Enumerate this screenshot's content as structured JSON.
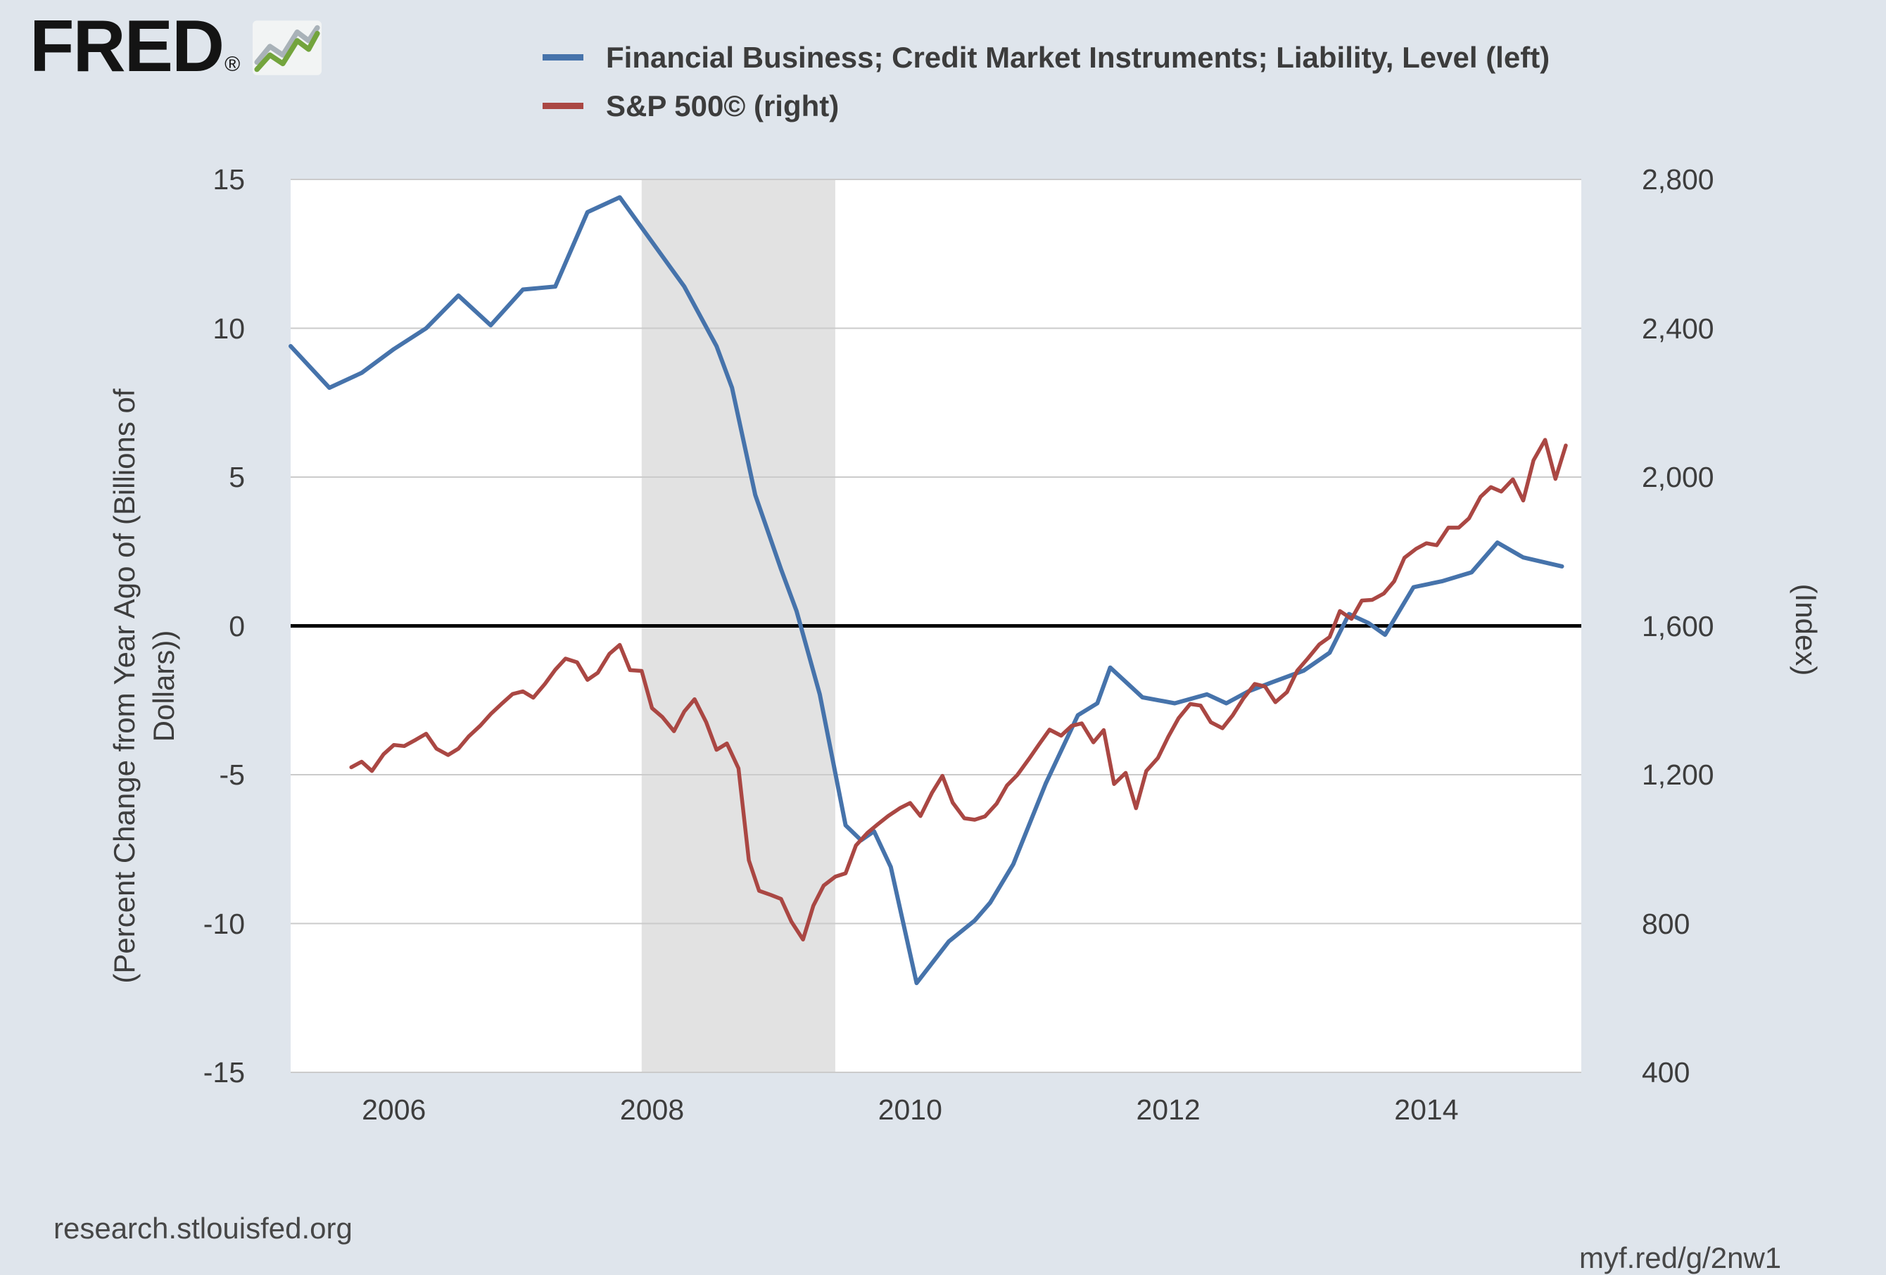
{
  "logo": {
    "text": "FRED",
    "registered": "®"
  },
  "footer": {
    "source": "research.stlouisfed.org",
    "shortlink": "myf.red/g/2nw1"
  },
  "chart_data": {
    "type": "line",
    "title": "",
    "x_domain": [
      2005.2,
      2015.2
    ],
    "x_ticks": [
      2006,
      2008,
      2010,
      2012,
      2014
    ],
    "recession_bands": [
      [
        2007.92,
        2009.42
      ]
    ],
    "zero_line": 0,
    "left_axis": {
      "label": "(Percent Change from Year Ago of (Billions of Dollars))",
      "label_lines": [
        "(Percent Change from Year Ago of (Billions of",
        "Dollars))"
      ],
      "range": [
        -15,
        15
      ],
      "ticks": [
        15,
        10,
        5,
        0,
        -5,
        -10,
        -15
      ]
    },
    "right_axis": {
      "label": "(Index)",
      "range": [
        400,
        2800
      ],
      "ticks": [
        2800,
        2400,
        2000,
        1600,
        1200,
        800,
        400
      ]
    },
    "colors": {
      "recession_band": "#e2e2e2",
      "gridline": "#cbcbcb",
      "zero_line": "#000000",
      "plot_background": "#ffffff",
      "page_background": "#dfe5ec"
    },
    "legend_position": "top",
    "grid": true,
    "series": [
      {
        "name": "Financial Business; Credit Market Instruments; Liability, Level (left)",
        "color": "#4673ab",
        "axis": "left",
        "width": 6,
        "points": [
          [
            2005.2,
            9.4
          ],
          [
            2005.5,
            8.0
          ],
          [
            2005.75,
            8.5
          ],
          [
            2006.0,
            9.3
          ],
          [
            2006.25,
            10.0
          ],
          [
            2006.5,
            11.1
          ],
          [
            2006.75,
            10.1
          ],
          [
            2007.0,
            11.3
          ],
          [
            2007.25,
            11.4
          ],
          [
            2007.5,
            13.9
          ],
          [
            2007.75,
            14.4
          ],
          [
            2008.0,
            12.9
          ],
          [
            2008.25,
            11.4
          ],
          [
            2008.5,
            9.4
          ],
          [
            2008.62,
            8.0
          ],
          [
            2008.8,
            4.4
          ],
          [
            2009.0,
            1.9
          ],
          [
            2009.12,
            0.5
          ],
          [
            2009.3,
            -2.3
          ],
          [
            2009.5,
            -6.7
          ],
          [
            2009.62,
            -7.2
          ],
          [
            2009.72,
            -6.9
          ],
          [
            2009.85,
            -8.1
          ],
          [
            2010.05,
            -12.0
          ],
          [
            2010.3,
            -10.6
          ],
          [
            2010.5,
            -9.9
          ],
          [
            2010.62,
            -9.3
          ],
          [
            2010.8,
            -8.0
          ],
          [
            2011.05,
            -5.3
          ],
          [
            2011.3,
            -3.0
          ],
          [
            2011.45,
            -2.6
          ],
          [
            2011.55,
            -1.4
          ],
          [
            2011.8,
            -2.4
          ],
          [
            2012.05,
            -2.6
          ],
          [
            2012.3,
            -2.3
          ],
          [
            2012.45,
            -2.6
          ],
          [
            2012.62,
            -2.2
          ],
          [
            2012.8,
            -1.9
          ],
          [
            2013.05,
            -1.5
          ],
          [
            2013.25,
            -0.9
          ],
          [
            2013.4,
            0.4
          ],
          [
            2013.55,
            0.1
          ],
          [
            2013.68,
            -0.3
          ],
          [
            2013.9,
            1.3
          ],
          [
            2014.12,
            1.5
          ],
          [
            2014.35,
            1.8
          ],
          [
            2014.55,
            2.8
          ],
          [
            2014.75,
            2.3
          ],
          [
            2014.95,
            2.1
          ],
          [
            2015.05,
            2.0
          ]
        ]
      },
      {
        "name": "S&P 500© (right)",
        "color": "#aa4743",
        "axis": "right",
        "width": 5.5,
        "points": [
          [
            2005.67,
            1220
          ],
          [
            2005.75,
            1235
          ],
          [
            2005.83,
            1210
          ],
          [
            2005.92,
            1255
          ],
          [
            2006.0,
            1280
          ],
          [
            2006.08,
            1277
          ],
          [
            2006.17,
            1294
          ],
          [
            2006.25,
            1310
          ],
          [
            2006.33,
            1270
          ],
          [
            2006.42,
            1253
          ],
          [
            2006.5,
            1270
          ],
          [
            2006.58,
            1303
          ],
          [
            2006.67,
            1332
          ],
          [
            2006.75,
            1363
          ],
          [
            2006.83,
            1389
          ],
          [
            2006.92,
            1417
          ],
          [
            2007.0,
            1424
          ],
          [
            2007.08,
            1407
          ],
          [
            2007.17,
            1444
          ],
          [
            2007.25,
            1482
          ],
          [
            2007.33,
            1512
          ],
          [
            2007.42,
            1502
          ],
          [
            2007.5,
            1455
          ],
          [
            2007.58,
            1474
          ],
          [
            2007.67,
            1525
          ],
          [
            2007.75,
            1549
          ],
          [
            2007.83,
            1481
          ],
          [
            2007.92,
            1479
          ],
          [
            2008.0,
            1379
          ],
          [
            2008.08,
            1355
          ],
          [
            2008.17,
            1317
          ],
          [
            2008.25,
            1370
          ],
          [
            2008.33,
            1403
          ],
          [
            2008.42,
            1341
          ],
          [
            2008.5,
            1267
          ],
          [
            2008.58,
            1284
          ],
          [
            2008.67,
            1217
          ],
          [
            2008.75,
            970
          ],
          [
            2008.83,
            888
          ],
          [
            2008.92,
            877
          ],
          [
            2009.0,
            866
          ],
          [
            2009.08,
            805
          ],
          [
            2009.17,
            757
          ],
          [
            2009.25,
            848
          ],
          [
            2009.33,
            902
          ],
          [
            2009.42,
            926
          ],
          [
            2009.5,
            935
          ],
          [
            2009.58,
            1010
          ],
          [
            2009.67,
            1044
          ],
          [
            2009.75,
            1067
          ],
          [
            2009.83,
            1089
          ],
          [
            2009.92,
            1110
          ],
          [
            2010.0,
            1124
          ],
          [
            2010.08,
            1089
          ],
          [
            2010.17,
            1152
          ],
          [
            2010.25,
            1197
          ],
          [
            2010.33,
            1125
          ],
          [
            2010.42,
            1083
          ],
          [
            2010.5,
            1079
          ],
          [
            2010.58,
            1088
          ],
          [
            2010.67,
            1122
          ],
          [
            2010.75,
            1171
          ],
          [
            2010.83,
            1199
          ],
          [
            2010.92,
            1242
          ],
          [
            2011.0,
            1282
          ],
          [
            2011.08,
            1321
          ],
          [
            2011.17,
            1305
          ],
          [
            2011.25,
            1331
          ],
          [
            2011.33,
            1338
          ],
          [
            2011.42,
            1287
          ],
          [
            2011.5,
            1320
          ],
          [
            2011.58,
            1175
          ],
          [
            2011.67,
            1205
          ],
          [
            2011.75,
            1110
          ],
          [
            2011.83,
            1210
          ],
          [
            2011.92,
            1245
          ],
          [
            2012.0,
            1302
          ],
          [
            2012.08,
            1352
          ],
          [
            2012.17,
            1390
          ],
          [
            2012.25,
            1386
          ],
          [
            2012.33,
            1341
          ],
          [
            2012.42,
            1325
          ],
          [
            2012.5,
            1360
          ],
          [
            2012.58,
            1404
          ],
          [
            2012.67,
            1444
          ],
          [
            2012.75,
            1437
          ],
          [
            2012.83,
            1395
          ],
          [
            2012.92,
            1422
          ],
          [
            2013.0,
            1480
          ],
          [
            2013.08,
            1512
          ],
          [
            2013.17,
            1550
          ],
          [
            2013.25,
            1570
          ],
          [
            2013.33,
            1640
          ],
          [
            2013.42,
            1619
          ],
          [
            2013.5,
            1668
          ],
          [
            2013.58,
            1670
          ],
          [
            2013.67,
            1687
          ],
          [
            2013.75,
            1720
          ],
          [
            2013.83,
            1783
          ],
          [
            2013.92,
            1807
          ],
          [
            2014.0,
            1822
          ],
          [
            2014.08,
            1817
          ],
          [
            2014.17,
            1864
          ],
          [
            2014.25,
            1864
          ],
          [
            2014.33,
            1889
          ],
          [
            2014.42,
            1947
          ],
          [
            2014.5,
            1973
          ],
          [
            2014.58,
            1961
          ],
          [
            2014.67,
            1994
          ],
          [
            2014.75,
            1937
          ],
          [
            2014.83,
            2045
          ],
          [
            2014.92,
            2100
          ],
          [
            2015.0,
            1995
          ],
          [
            2015.08,
            2085
          ]
        ]
      }
    ]
  }
}
